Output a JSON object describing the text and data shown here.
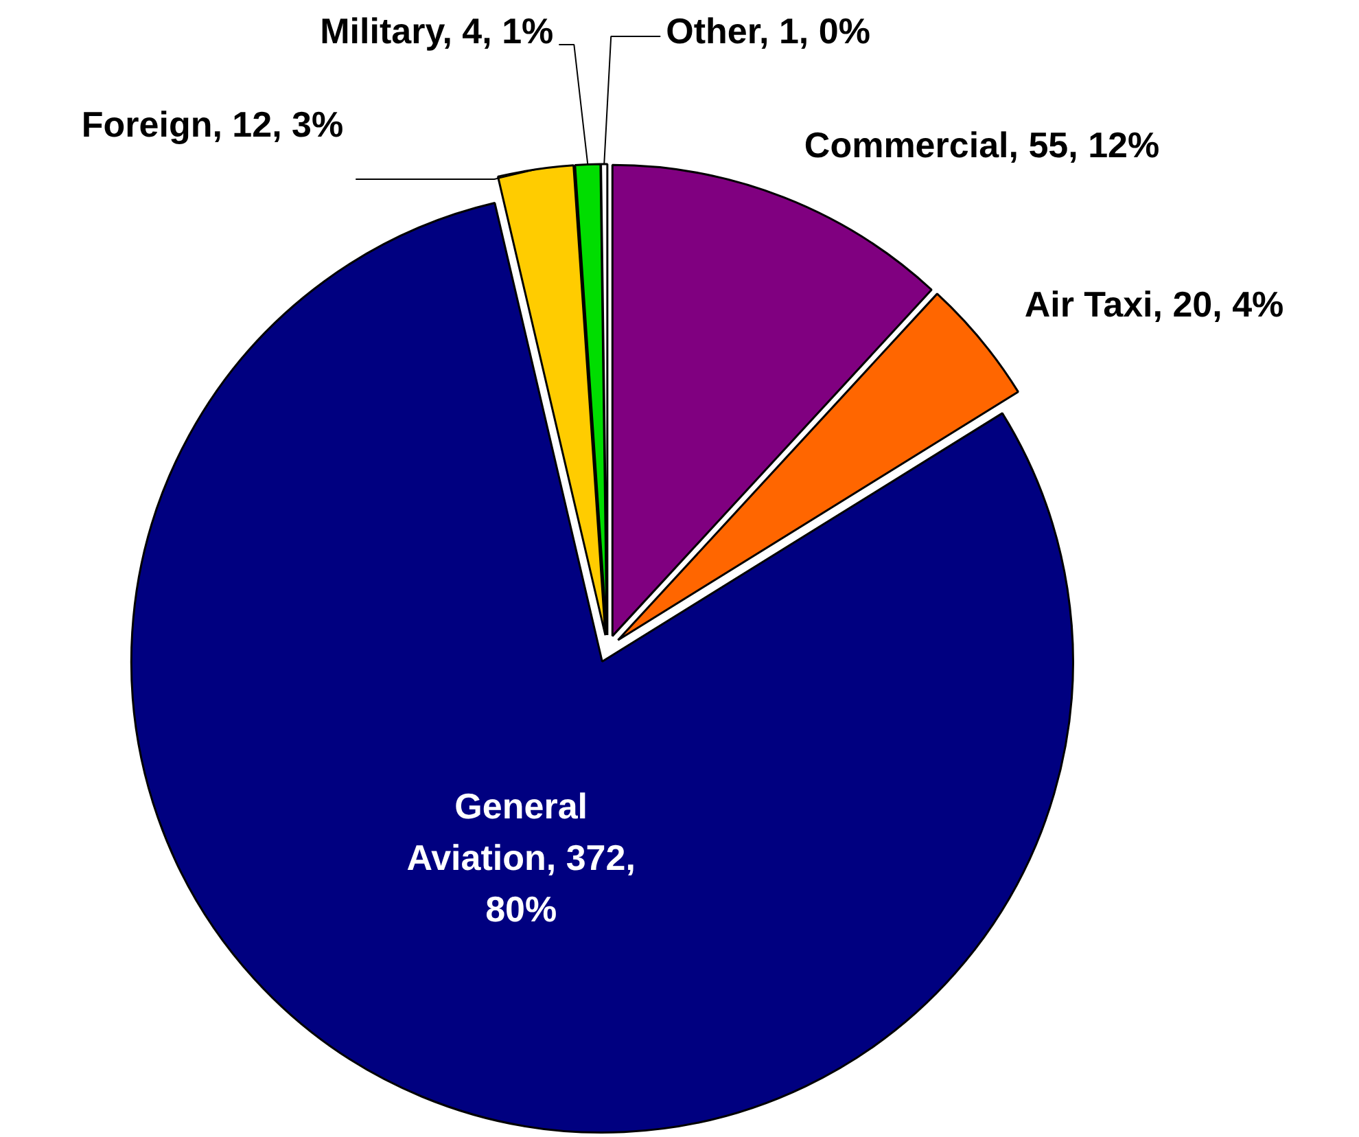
{
  "chart_data": {
    "type": "pie",
    "categories": [
      "Commercial",
      "Air Taxi",
      "General Aviation",
      "Foreign",
      "Military",
      "Other"
    ],
    "values": [
      55,
      20,
      372,
      12,
      4,
      1
    ],
    "value_labels": [
      "55, 12%",
      "20, 4%",
      "372, 80%",
      "12, 3%",
      "4, 1%",
      "1, 0%"
    ],
    "colors": [
      "#800080",
      "#ff6600",
      "#000080",
      "#ffcc00",
      "#00dd00",
      "#ffffff"
    ],
    "legend": false
  }
}
